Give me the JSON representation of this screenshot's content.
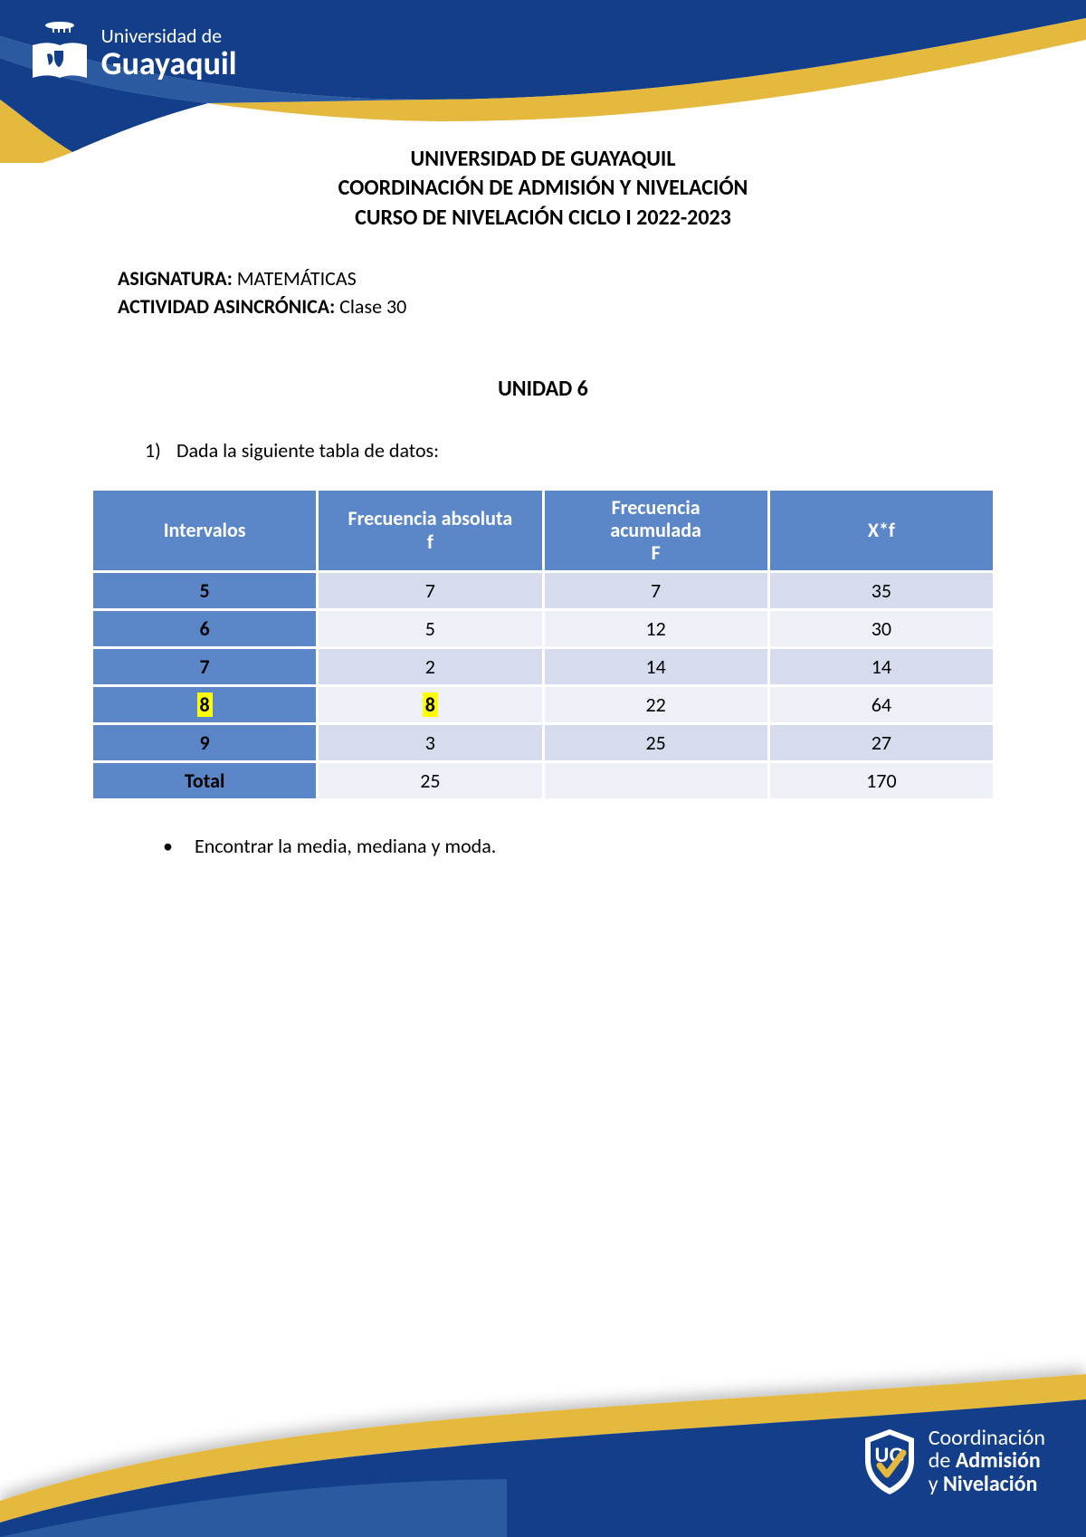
{
  "colors": {
    "swoosh_blue_dark": "#123e8a",
    "swoosh_blue_mid": "#2c5aa0",
    "swoosh_gold": "#e4b93d",
    "table_header_bg": "#5b86c7",
    "table_header_fg": "#ffffff",
    "row_alt_a": "#d6dced",
    "row_alt_b": "#eef0f8",
    "highlight_bg": "#ffff00",
    "text": "#000000",
    "page_bg": "#ffffff"
  },
  "header": {
    "logo_line1": "Universidad de",
    "logo_line2": "Guayaquil"
  },
  "titles": {
    "l1": "UNIVERSIDAD DE GUAYAQUIL",
    "l2": "COORDINACIÓN DE ADMISIÓN Y NIVELACIÓN",
    "l3": "CURSO DE NIVELACIÓN CICLO I 2022-2023"
  },
  "meta": {
    "asignatura_label": "ASIGNATURA:",
    "asignatura_value": "MATEMÁTICAS",
    "actividad_label": "ACTIVIDAD ASINCRÓNICA:",
    "actividad_value": "Clase 30"
  },
  "unidad": "UNIDAD 6",
  "question": {
    "num": "1)",
    "text": "Dada la siguiente tabla de datos:"
  },
  "table": {
    "columns": {
      "c1": "Intervalos",
      "c2_l1": "Frecuencia absoluta",
      "c2_l2": "f",
      "c3_l1": "Frecuencia",
      "c3_l2": "acumulada",
      "c3_l3": "F",
      "c4": "X*f"
    },
    "rows": [
      {
        "int": "5",
        "f": "7",
        "F": "7",
        "xf": "35",
        "hl_int": false,
        "hl_f": false
      },
      {
        "int": "6",
        "f": "5",
        "F": "12",
        "xf": "30",
        "hl_int": false,
        "hl_f": false
      },
      {
        "int": "7",
        "f": "2",
        "F": "14",
        "xf": "14",
        "hl_int": false,
        "hl_f": false
      },
      {
        "int": "8",
        "f": "8",
        "F": "22",
        "xf": "64",
        "hl_int": true,
        "hl_f": true
      },
      {
        "int": "9",
        "f": "3",
        "F": "25",
        "xf": "27",
        "hl_int": false,
        "hl_f": false
      }
    ],
    "total": {
      "label": "Total",
      "f": "25",
      "F": "",
      "xf": "170"
    }
  },
  "bullet": "Encontrar la media, mediana y moda.",
  "footer": {
    "line1a": "Coordinación",
    "line2a": "de ",
    "line2b": "Admisión",
    "line3a": "y ",
    "line3b": "Nivelación"
  }
}
